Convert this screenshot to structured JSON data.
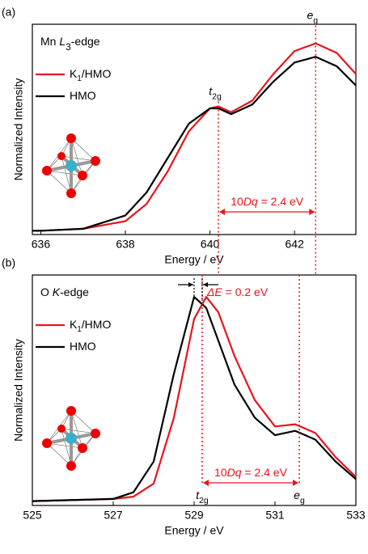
{
  "chart_data": [
    {
      "type": "line",
      "panel_label": "(a)",
      "title": [
        {
          "text": "Mn "
        },
        {
          "text": "L",
          "style": "italic"
        },
        {
          "text": "3",
          "style": "sub"
        },
        {
          "text": "-edge"
        }
      ],
      "x_label": "Energy / eV",
      "y_label": "Normalized Intensity",
      "x": [
        635.8,
        636,
        637,
        638,
        638.5,
        639,
        639.5,
        640,
        640.2,
        640.5,
        641,
        641.5,
        642,
        642.5,
        643,
        643.45
      ],
      "series": [
        {
          "name": [
            {
              "text": "K"
            },
            {
              "text": "1",
              "style": "sub"
            },
            {
              "text": "/HMO"
            }
          ],
          "color": "#e8141c",
          "values": [
            0.02,
            0.02,
            0.03,
            0.07,
            0.16,
            0.33,
            0.54,
            0.66,
            0.67,
            0.64,
            0.7,
            0.84,
            0.96,
            1.0,
            0.95,
            0.84
          ]
        },
        {
          "name": [
            {
              "text": "HMO"
            }
          ],
          "color": "#000000",
          "values": [
            0.02,
            0.02,
            0.03,
            0.1,
            0.22,
            0.4,
            0.58,
            0.66,
            0.66,
            0.63,
            0.68,
            0.8,
            0.9,
            0.93,
            0.88,
            0.78
          ]
        }
      ],
      "xlim": [
        635.8,
        643.45
      ],
      "xticks": [
        636,
        638,
        640,
        642
      ],
      "ylim": [
        0,
        1.1
      ],
      "peaks": [
        {
          "x": 640.2,
          "label": [
            {
              "text": "t",
              "style": "italic"
            },
            {
              "text": "2g",
              "style": "sub"
            }
          ]
        },
        {
          "x": 642.5,
          "label": [
            {
              "text": "e",
              "style": "italic"
            },
            {
              "text": "g",
              "style": "sub"
            }
          ]
        }
      ],
      "splitting": [
        {
          "text": "10"
        },
        {
          "text": "Dq",
          "style": "italic"
        },
        {
          "text": " = 2.4 eV"
        }
      ]
    },
    {
      "type": "line",
      "panel_label": "(b)",
      "title": [
        {
          "text": "O "
        },
        {
          "text": "K",
          "style": "italic"
        },
        {
          "text": "-edge"
        }
      ],
      "x_label": "Energy / eV",
      "y_label": "Normalized Intensity",
      "x": [
        525,
        527,
        527.5,
        528,
        528.5,
        529,
        529.3,
        529.6,
        530,
        530.5,
        531,
        531.5,
        532,
        532.5,
        533
      ],
      "series": [
        {
          "name": [
            {
              "text": "K"
            },
            {
              "text": "1",
              "style": "sub"
            },
            {
              "text": "/HMO"
            }
          ],
          "color": "#e8141c",
          "values": [
            0.02,
            0.03,
            0.04,
            0.1,
            0.4,
            0.85,
            0.95,
            0.88,
            0.68,
            0.48,
            0.36,
            0.37,
            0.33,
            0.22,
            0.13
          ]
        },
        {
          "name": [
            {
              "text": "HMO"
            }
          ],
          "color": "#000000",
          "values": [
            0.02,
            0.03,
            0.06,
            0.2,
            0.6,
            0.95,
            0.9,
            0.75,
            0.55,
            0.4,
            0.32,
            0.34,
            0.3,
            0.2,
            0.12
          ]
        }
      ],
      "xlim": [
        525,
        533
      ],
      "xticks": [
        525,
        527,
        529,
        531,
        533
      ],
      "ylim": [
        0,
        1.05
      ],
      "peaks": [
        {
          "x": 529.2,
          "label": [
            {
              "text": "t",
              "style": "italic"
            },
            {
              "text": "2g",
              "style": "sub"
            }
          ]
        },
        {
          "x": 531.6,
          "label": [
            {
              "text": "e",
              "style": "italic"
            },
            {
              "text": "g",
              "style": "sub"
            }
          ]
        }
      ],
      "splitting": [
        {
          "text": "10"
        },
        {
          "text": "Dq",
          "style": "italic"
        },
        {
          "text": " = 2.4 eV"
        }
      ],
      "shift": {
        "x": [
          529.0,
          529.2
        ],
        "label": [
          {
            "text": "ΔE",
            "style": "italic"
          },
          {
            "text": " = 0.2 eV"
          }
        ]
      }
    }
  ]
}
